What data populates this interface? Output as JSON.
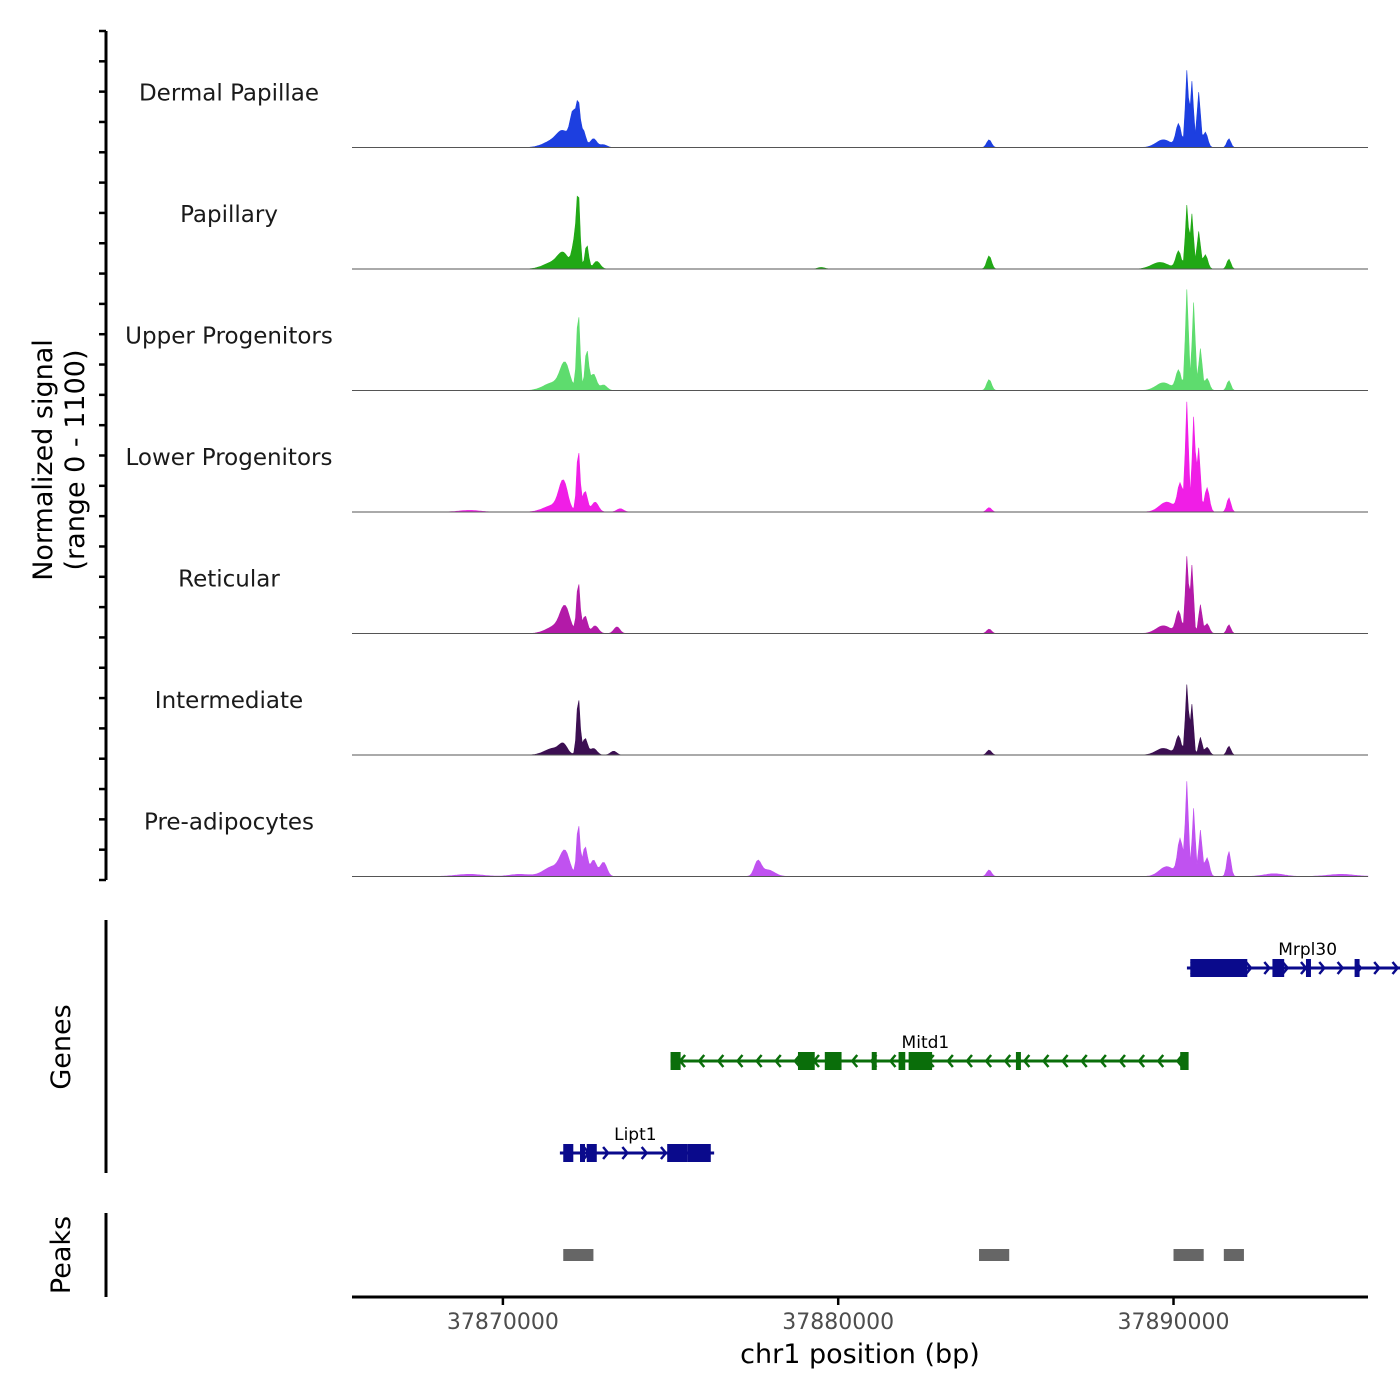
{
  "chart_data": {
    "type": "area",
    "title": "",
    "xlabel": "chr1 position (bp)",
    "ylabel": "Normalized signal",
    "ylabel_sub": "(range 0 - 1100)",
    "xlim": [
      37865500,
      37895800
    ],
    "ylim": [
      0,
      1100
    ],
    "x_ticks": [
      37870000,
      37880000,
      37890000
    ],
    "x_tick_labels": [
      "37870000",
      "37880000",
      "37890000"
    ],
    "tracks": [
      {
        "name": "Dermal Papillae",
        "color": "#1d3fe0",
        "peaks": [
          [
            37871500,
            60,
            280
          ],
          [
            37871800,
            120,
            180
          ],
          [
            37872100,
            300,
            90
          ],
          [
            37872250,
            340,
            55
          ],
          [
            37872400,
            150,
            70
          ],
          [
            37872700,
            80,
            100
          ],
          [
            37873000,
            25,
            100
          ],
          [
            37884500,
            70,
            70
          ],
          [
            37889700,
            70,
            220
          ],
          [
            37890150,
            210,
            80
          ],
          [
            37890400,
            700,
            45
          ],
          [
            37890550,
            600,
            45
          ],
          [
            37890750,
            500,
            50
          ],
          [
            37890950,
            140,
            70
          ],
          [
            37891650,
            80,
            60
          ]
        ]
      },
      {
        "name": "Papillary",
        "color": "#21a816",
        "peaks": [
          [
            37871500,
            60,
            280
          ],
          [
            37871800,
            120,
            160
          ],
          [
            37872150,
            260,
            80
          ],
          [
            37872250,
            590,
            50
          ],
          [
            37872500,
            220,
            55
          ],
          [
            37872800,
            70,
            100
          ],
          [
            37879500,
            15,
            100
          ],
          [
            37884500,
            120,
            70
          ],
          [
            37889600,
            60,
            250
          ],
          [
            37890150,
            160,
            80
          ],
          [
            37890400,
            580,
            45
          ],
          [
            37890550,
            500,
            45
          ],
          [
            37890750,
            340,
            50
          ],
          [
            37890950,
            130,
            70
          ],
          [
            37891650,
            90,
            60
          ]
        ]
      },
      {
        "name": "Upper Progenitors",
        "color": "#5edc6e",
        "peaks": [
          [
            37871500,
            70,
            280
          ],
          [
            37871850,
            230,
            140
          ],
          [
            37872250,
            700,
            50
          ],
          [
            37872500,
            360,
            55
          ],
          [
            37872700,
            150,
            90
          ],
          [
            37873000,
            50,
            100
          ],
          [
            37884500,
            100,
            70
          ],
          [
            37889700,
            70,
            220
          ],
          [
            37890150,
            180,
            80
          ],
          [
            37890400,
            920,
            45
          ],
          [
            37890600,
            800,
            45
          ],
          [
            37890800,
            380,
            50
          ],
          [
            37891000,
            110,
            70
          ],
          [
            37891650,
            90,
            60
          ]
        ]
      },
      {
        "name": "Lower Progenitors",
        "color": "#f01ee6",
        "peaks": [
          [
            37869000,
            15,
            300
          ],
          [
            37871500,
            60,
            280
          ],
          [
            37871800,
            260,
            130
          ],
          [
            37872250,
            560,
            50
          ],
          [
            37872450,
            190,
            70
          ],
          [
            37872750,
            90,
            100
          ],
          [
            37873500,
            30,
            100
          ],
          [
            37884500,
            40,
            70
          ],
          [
            37889800,
            90,
            220
          ],
          [
            37890200,
            250,
            80
          ],
          [
            37890400,
            990,
            45
          ],
          [
            37890600,
            860,
            45
          ],
          [
            37890750,
            580,
            50
          ],
          [
            37891000,
            220,
            70
          ],
          [
            37891650,
            130,
            60
          ]
        ]
      },
      {
        "name": "Reticular",
        "color": "#b31aa8",
        "peaks": [
          [
            37871600,
            70,
            280
          ],
          [
            37871850,
            210,
            140
          ],
          [
            37872250,
            460,
            50
          ],
          [
            37872450,
            160,
            70
          ],
          [
            37872750,
            70,
            100
          ],
          [
            37873400,
            60,
            90
          ],
          [
            37884500,
            40,
            70
          ],
          [
            37889700,
            70,
            220
          ],
          [
            37890150,
            200,
            80
          ],
          [
            37890400,
            700,
            45
          ],
          [
            37890550,
            620,
            45
          ],
          [
            37890800,
            260,
            50
          ],
          [
            37891000,
            90,
            70
          ],
          [
            37891650,
            80,
            60
          ]
        ]
      },
      {
        "name": "Intermediate",
        "color": "#3c0f52",
        "peaks": [
          [
            37871500,
            60,
            250
          ],
          [
            37871800,
            80,
            120
          ],
          [
            37872250,
            520,
            50
          ],
          [
            37872450,
            150,
            70
          ],
          [
            37872700,
            60,
            100
          ],
          [
            37873300,
            35,
            90
          ],
          [
            37884500,
            45,
            70
          ],
          [
            37889700,
            60,
            220
          ],
          [
            37890150,
            170,
            80
          ],
          [
            37890400,
            640,
            45
          ],
          [
            37890550,
            460,
            45
          ],
          [
            37890800,
            160,
            50
          ],
          [
            37891000,
            70,
            70
          ],
          [
            37891650,
            80,
            60
          ]
        ]
      },
      {
        "name": "Pre-adipocytes",
        "color": "#c052f0",
        "peaks": [
          [
            37869000,
            20,
            400
          ],
          [
            37870500,
            20,
            300
          ],
          [
            37871500,
            90,
            280
          ],
          [
            37871850,
            200,
            140
          ],
          [
            37872250,
            470,
            50
          ],
          [
            37872450,
            270,
            70
          ],
          [
            37872700,
            150,
            90
          ],
          [
            37873000,
            130,
            100
          ],
          [
            37877600,
            130,
            100
          ],
          [
            37877900,
            60,
            200
          ],
          [
            37884500,
            60,
            70
          ],
          [
            37889800,
            90,
            220
          ],
          [
            37890200,
            330,
            80
          ],
          [
            37890400,
            850,
            45
          ],
          [
            37890600,
            620,
            45
          ],
          [
            37890800,
            420,
            50
          ],
          [
            37891000,
            170,
            70
          ],
          [
            37891650,
            230,
            60
          ],
          [
            37893000,
            25,
            300
          ],
          [
            37895000,
            20,
            400
          ]
        ]
      }
    ],
    "genes_label": "Genes",
    "genes": [
      {
        "name": "Mrpl30",
        "strand": "+",
        "color": "#0a0a8c",
        "start": 37890400,
        "end": 37897500,
        "exons": [
          [
            37890500,
            37892200
          ],
          [
            37892950,
            37893300
          ],
          [
            37893950,
            37894000
          ],
          [
            37895400,
            37895450
          ]
        ],
        "label_x": 37894000
      },
      {
        "name": "Mitd1",
        "strand": "-",
        "color": "#0a6e0a",
        "start": 37875000,
        "end": 37890400,
        "exons": [
          [
            37875000,
            37875300
          ],
          [
            37878800,
            37879300
          ],
          [
            37879600,
            37880100
          ],
          [
            37881000,
            37881050
          ],
          [
            37881800,
            37882000
          ],
          [
            37882100,
            37882800
          ],
          [
            37885300,
            37885350
          ],
          [
            37890200,
            37890450
          ]
        ],
        "label_x": 37882600
      },
      {
        "name": "Lipt1",
        "strand": "+",
        "color": "#0a0a8c",
        "start": 37871700,
        "end": 37876300,
        "exons": [
          [
            37871800,
            37872100
          ],
          [
            37872300,
            37872350
          ],
          [
            37872500,
            37872800
          ],
          [
            37874900,
            37875500
          ],
          [
            37875500,
            37876200
          ]
        ],
        "label_x": 37873950
      }
    ],
    "peaks_label": "Peaks",
    "peak_regions": [
      [
        37871800,
        37872700
      ],
      [
        37884200,
        37885100
      ],
      [
        37890000,
        37890900
      ],
      [
        37891500,
        37892100
      ]
    ]
  }
}
